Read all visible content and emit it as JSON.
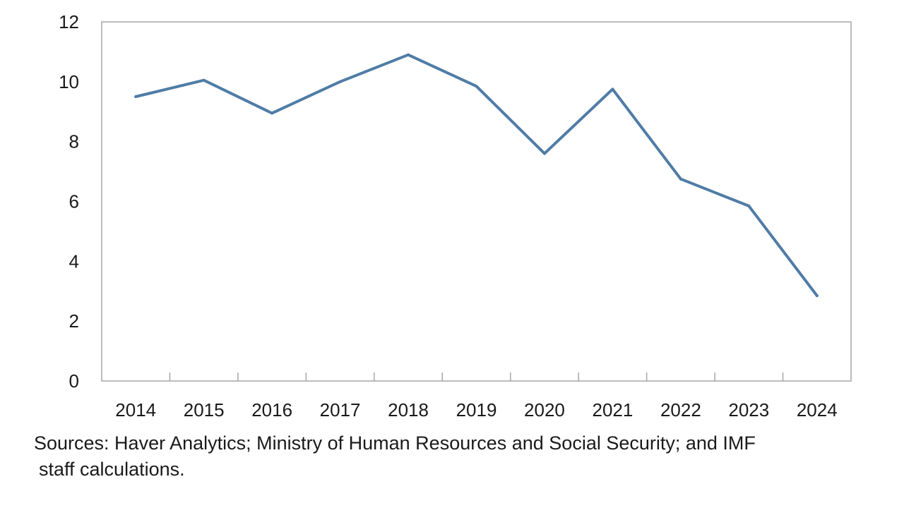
{
  "chart_data": {
    "type": "line",
    "title": "",
    "xlabel": "",
    "ylabel": "",
    "categories": [
      "2014",
      "2015",
      "2016",
      "2017",
      "2018",
      "2019",
      "2020",
      "2021",
      "2022",
      "2023",
      "2024"
    ],
    "series": [
      {
        "name": "Series 1",
        "color": "#4f7ca6",
        "values": [
          9.5,
          10.05,
          8.95,
          10.0,
          10.9,
          9.85,
          7.6,
          9.75,
          6.75,
          5.85,
          2.85
        ]
      }
    ],
    "ylim": [
      0,
      12
    ],
    "yticks": [
      0,
      2,
      4,
      6,
      8,
      10,
      12
    ],
    "grid": false,
    "legend": "none"
  },
  "source": {
    "line1": "Sources: Haver Analytics; Ministry of Human Resources and Social Security; and IMF",
    "line2": "staff calculations."
  },
  "colors": {
    "axis": "#a6a6a6",
    "line": "#4f7ca6"
  }
}
